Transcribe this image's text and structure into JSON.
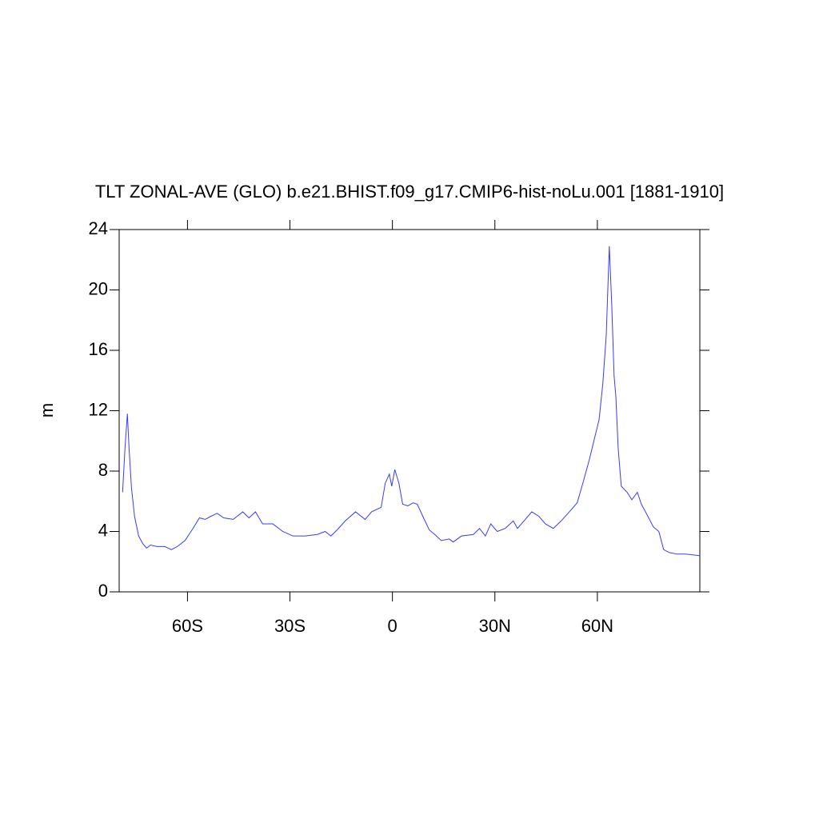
{
  "chart_data": {
    "type": "line",
    "title": "TLT ZONAL-AVE (GLO) b.e21.BHIST.f09_g17.CMIP6-hist-noLu.001 [1881-1910]",
    "y_label": "m",
    "color": "#3a3aff",
    "x": [
      -79,
      -78.3,
      -77.6,
      -77.1,
      -76.4,
      -75.5,
      -74.3,
      -73.1,
      -72,
      -70.8,
      -68.9,
      -66.6,
      -64.7,
      -63,
      -60.7,
      -58.4,
      -56.5,
      -54.8,
      -53.2,
      -51.3,
      -49.4,
      -46.6,
      -43.8,
      -42,
      -40.1,
      -38,
      -35,
      -32.1,
      -29.1,
      -25.5,
      -22,
      -19.7,
      -18,
      -16.2,
      -13.8,
      -10.8,
      -8,
      -6.1,
      -3.3,
      -2.1,
      -0.9,
      -0.2,
      0.7,
      1.9,
      3,
      4.5,
      6.1,
      7.3,
      8.9,
      10.8,
      12.4,
      14.3,
      16.6,
      17.8,
      20.2,
      23.7,
      25.5,
      27.2,
      28.8,
      30.7,
      33,
      35.4,
      36.6,
      38.9,
      40.8,
      42.9,
      44.8,
      47.1,
      49.4,
      51.8,
      54.1,
      56,
      57.7,
      59.3,
      60.5,
      61.6,
      62.6,
      63.5,
      64.2,
      64.9,
      65.4,
      66.1,
      67,
      68.7,
      70.1,
      71.7,
      72.9,
      74.8,
      76.4,
      78,
      79.4,
      81.1,
      83.4,
      85.8,
      90
    ],
    "values": [
      6.6,
      9.5,
      11.8,
      9.5,
      6.9,
      5.0,
      3.7,
      3.2,
      2.9,
      3.1,
      3.0,
      3.0,
      2.8,
      3.0,
      3.4,
      4.2,
      4.9,
      4.8,
      5.0,
      5.2,
      4.9,
      4.8,
      5.3,
      4.9,
      5.3,
      4.5,
      4.5,
      4.0,
      3.7,
      3.7,
      3.8,
      4.0,
      3.7,
      4.1,
      4.7,
      5.3,
      4.8,
      5.3,
      5.6,
      7.2,
      7.8,
      7.0,
      8.1,
      7.2,
      5.8,
      5.7,
      5.9,
      5.8,
      5.0,
      4.1,
      3.8,
      3.4,
      3.5,
      3.3,
      3.7,
      3.8,
      4.2,
      3.7,
      4.5,
      4.0,
      4.2,
      4.7,
      4.2,
      4.8,
      5.3,
      5.0,
      4.5,
      4.2,
      4.7,
      5.3,
      5.9,
      7.4,
      8.8,
      10.3,
      11.4,
      13.8,
      17.0,
      22.9,
      19.1,
      14.3,
      13.0,
      9.5,
      7.0,
      6.6,
      6.1,
      6.6,
      5.8,
      5.0,
      4.3,
      4.0,
      2.8,
      2.6,
      2.5,
      2.5,
      2.4
    ],
    "xlim": [
      -80,
      90
    ],
    "xticks": [
      {
        "value": -60,
        "label": "60S"
      },
      {
        "value": -30,
        "label": "30S"
      },
      0,
      {
        "value": 30,
        "label": "30N"
      },
      {
        "value": 60,
        "label": "60N"
      }
    ],
    "ylim": [
      0,
      24
    ],
    "yticks": [
      0,
      4,
      8,
      12,
      16,
      20,
      24
    ],
    "grid": false
  }
}
